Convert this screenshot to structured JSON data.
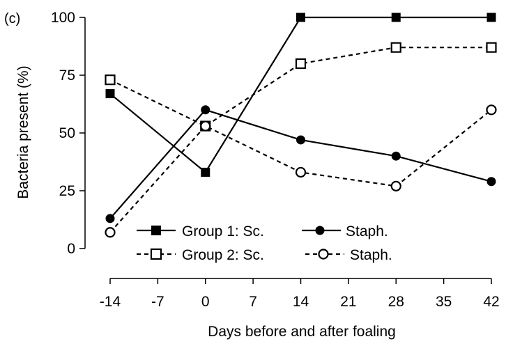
{
  "chart_data": {
    "type": "line",
    "panel_label": "(c)",
    "xlabel": "Days before and after foaling",
    "ylabel": "Bacteria present (%)",
    "x": [
      -14,
      0,
      14,
      28,
      42
    ],
    "xticks": [
      -14,
      -7,
      0,
      7,
      14,
      21,
      28,
      35,
      42
    ],
    "yticks": [
      0,
      25,
      50,
      75,
      100
    ],
    "xlim": [
      -14,
      42
    ],
    "ylim": [
      0,
      100
    ],
    "grid": false,
    "legend_placement": "bottom-center",
    "legend_groups": [
      "Group 1: Sc.",
      "Group 2: Sc."
    ],
    "series": [
      {
        "name": "Sc.",
        "group": "Group 1",
        "line": "solid",
        "marker": "filled-square",
        "values": [
          67,
          33,
          100,
          100,
          100
        ]
      },
      {
        "name": "Staph.",
        "group": "Group 1",
        "line": "solid",
        "marker": "filled-circle",
        "values": [
          13,
          60,
          47,
          40,
          29
        ]
      },
      {
        "name": "Sc.",
        "group": "Group 2",
        "line": "dashed",
        "marker": "open-square",
        "values": [
          73,
          53,
          80,
          87,
          87
        ]
      },
      {
        "name": "Staph.",
        "group": "Group 2",
        "line": "dashed",
        "marker": "open-circle",
        "values": [
          7,
          53,
          33,
          27,
          60
        ]
      }
    ],
    "colors": {
      "line": "#000000",
      "background": "#ffffff"
    }
  }
}
